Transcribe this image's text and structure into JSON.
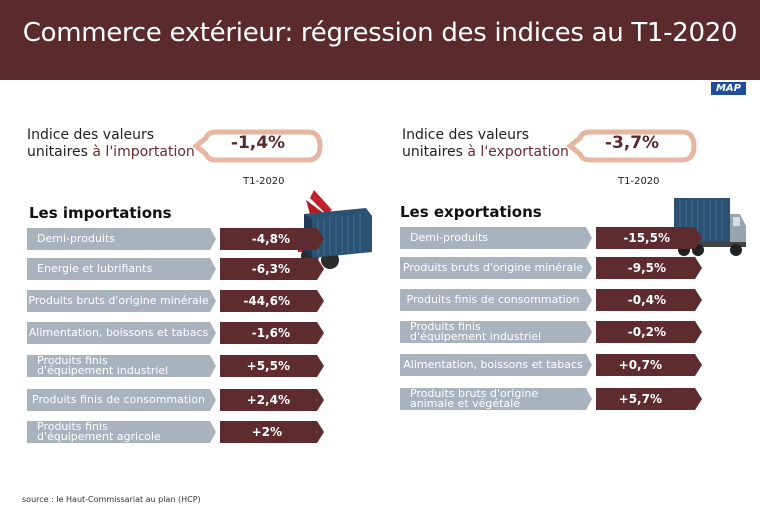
{
  "title": "Commerce extérieur: régression des indices au T1-2020",
  "logo": "MAP",
  "import_index": {
    "label_line1": "Indice des valeurs",
    "label_prefix": "unitaires ",
    "label_accent": "à l'importation",
    "value": "-1,4%",
    "period": "T1-2020"
  },
  "export_index": {
    "label_line1": "Indice des valeurs",
    "label_prefix": "unitaires ",
    "label_accent": "à l'exportation",
    "value": "-3,7%",
    "period": "T1-2020"
  },
  "source": "source : le Haut-Commissariat au plan (HCP)",
  "colors": {
    "header": "#5b2a2c",
    "label_bar": "#a9b3bd",
    "value_bar": "#5e2b2e",
    "pill_border": "#e7b6a0"
  },
  "icons": [
    "container-crane-icon",
    "container-truck-icon"
  ],
  "chart_data": [
    {
      "type": "table",
      "title": "Les importations",
      "rows": [
        {
          "category": "Demi-produits",
          "value": -4.8,
          "label": "-4,8%"
        },
        {
          "category": "Energie et lubrifiants",
          "value": -6.3,
          "label": "-6,3%"
        },
        {
          "category": "Produits bruts d'origine minérale",
          "value": -44.6,
          "label": "-44,6%"
        },
        {
          "category": "Alimentation, boissons et tabacs",
          "value": -1.6,
          "label": "-1,6%"
        },
        {
          "category": "Produits finis d'équipement industriel",
          "value": 5.5,
          "label": "+5,5%"
        },
        {
          "category": "Produits finis de consommation",
          "value": 2.4,
          "label": "+2,4%"
        },
        {
          "category": "Produits finis d'équipement agricole",
          "value": 2,
          "label": "+2%"
        }
      ]
    },
    {
      "type": "table",
      "title": "Les exportations",
      "rows": [
        {
          "category": "Demi-produits",
          "value": -15.5,
          "label": "-15,5%"
        },
        {
          "category": "Produits bruts d'origine minérale",
          "value": -9.5,
          "label": "-9,5%"
        },
        {
          "category": "Produits finis de consommation",
          "value": -0.4,
          "label": "-0,4%"
        },
        {
          "category": "Produits finis d'équipement industriel",
          "value": -0.2,
          "label": "-0,2%"
        },
        {
          "category": "Alimentation, boissons et tabacs",
          "value": 0.7,
          "label": "+0,7%"
        },
        {
          "category": "Produits bruts d'origine animale et végétale",
          "value": 5.7,
          "label": "+5,7%"
        }
      ]
    }
  ]
}
